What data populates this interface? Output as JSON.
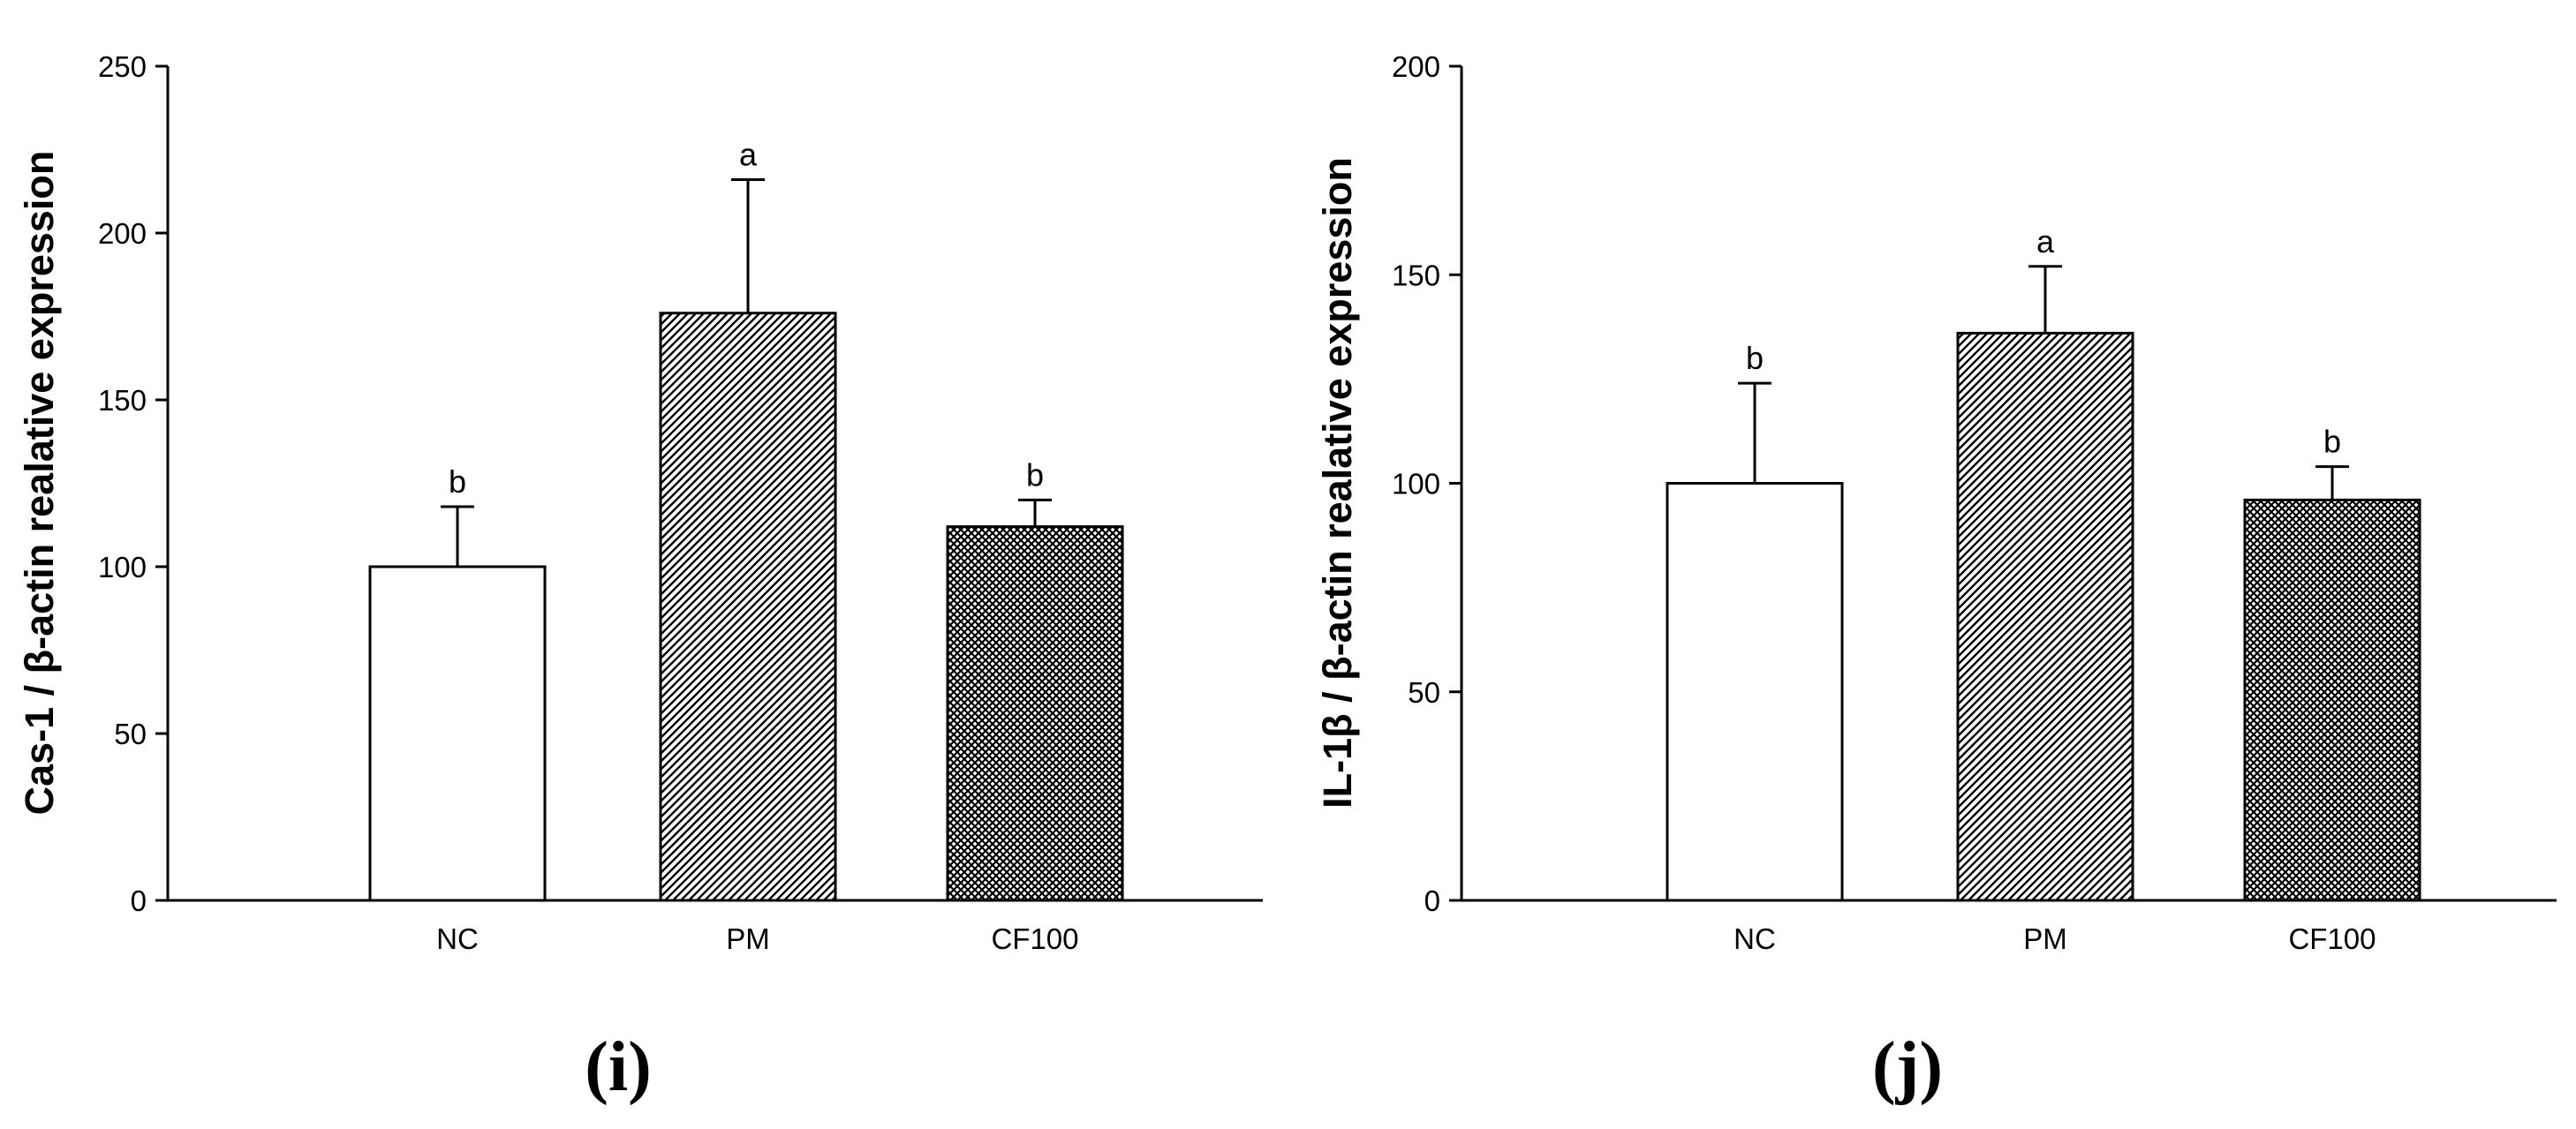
{
  "colors": {
    "ink": "#000000",
    "paper": "#ffffff"
  },
  "chart_data": [
    {
      "type": "bar",
      "panel": "(i)",
      "ylabel": "Cas-1 / β-actin realative expression",
      "xlabel": "",
      "categories": [
        "NC",
        "PM",
        "CF100"
      ],
      "values": [
        100,
        176,
        112
      ],
      "errors": [
        18,
        40,
        8
      ],
      "significance": [
        "b",
        "a",
        "b"
      ],
      "fills": [
        "none",
        "diagonal",
        "crosshatch"
      ],
      "ylim": [
        0,
        250
      ],
      "yticks": [
        0,
        50,
        100,
        150,
        200,
        250
      ],
      "grid": false
    },
    {
      "type": "bar",
      "panel": "(j)",
      "ylabel": "IL-1β / β-actin realative expression",
      "xlabel": "",
      "categories": [
        "NC",
        "PM",
        "CF100"
      ],
      "values": [
        100,
        136,
        96
      ],
      "errors": [
        24,
        16,
        8
      ],
      "significance": [
        "b",
        "a",
        "b"
      ],
      "fills": [
        "none",
        "diagonal",
        "crosshatch"
      ],
      "ylim": [
        0,
        200
      ],
      "yticks": [
        0,
        50,
        100,
        150,
        200
      ],
      "grid": false
    }
  ]
}
